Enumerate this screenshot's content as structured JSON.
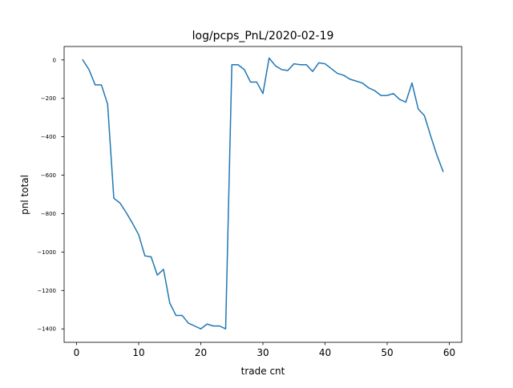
{
  "chart_data": {
    "type": "line",
    "title": "log/pcps_PnL/2020-02-19",
    "xlabel": "trade cnt",
    "ylabel": "pnl total",
    "xlim": [
      -2,
      62
    ],
    "ylim": [
      -1470,
      70
    ],
    "xticks": [
      0,
      10,
      20,
      30,
      40,
      50,
      60
    ],
    "yticks": [
      0,
      -200,
      -400,
      -600,
      -800,
      -1000,
      -1200,
      -1400
    ],
    "xtick_labels": [
      "0",
      "10",
      "20",
      "30",
      "40",
      "50",
      "60"
    ],
    "ytick_labels": [
      "0",
      "−200",
      "−400",
      "−600",
      "−800",
      "−1000",
      "−1200",
      "−1400"
    ],
    "grid": false,
    "series": [
      {
        "color": "#1f77b4",
        "x": [
          1,
          2,
          3,
          4,
          5,
          6,
          7,
          8,
          9,
          10,
          11,
          12,
          13,
          14,
          15,
          16,
          17,
          18,
          19,
          20,
          21,
          22,
          23,
          24,
          25,
          26,
          27,
          28,
          29,
          30,
          31,
          32,
          33,
          34,
          35,
          36,
          37,
          38,
          39,
          40,
          41,
          42,
          43,
          44,
          45,
          46,
          47,
          48,
          49,
          50,
          51,
          52,
          53,
          54,
          55,
          56,
          57,
          58,
          59
        ],
        "y": [
          0,
          -50,
          -130,
          -130,
          -230,
          -720,
          -745,
          -795,
          -850,
          -910,
          -1020,
          -1025,
          -1120,
          -1090,
          -1265,
          -1330,
          -1330,
          -1370,
          -1385,
          -1400,
          -1375,
          -1385,
          -1385,
          -1400,
          -25,
          -25,
          -50,
          -115,
          -115,
          -175,
          10,
          -30,
          -50,
          -55,
          -20,
          -25,
          -25,
          -60,
          -15,
          -20,
          -45,
          -70,
          -80,
          -100,
          -110,
          -120,
          -145,
          -160,
          -185,
          -185,
          -175,
          -205,
          -220,
          -120,
          -255,
          -290,
          -395,
          -495,
          -580
        ]
      }
    ]
  }
}
